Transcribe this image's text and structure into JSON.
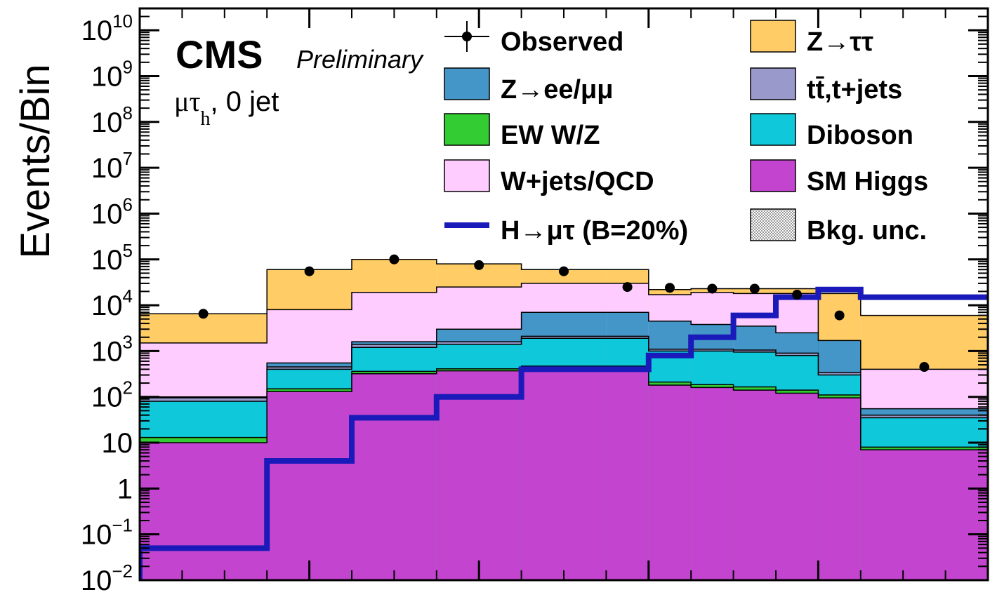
{
  "chart_data": {
    "type": "bar",
    "stacked": true,
    "log_scale": true,
    "ylabel": "Events/Bin",
    "ylim": [
      0.01,
      30000000000
    ],
    "yticks": [
      {
        "value": 10000000000.0,
        "base": "10",
        "exp": "10"
      },
      {
        "value": 1000000000.0,
        "base": "10",
        "exp": "9"
      },
      {
        "value": 100000000.0,
        "base": "10",
        "exp": "8"
      },
      {
        "value": 10000000.0,
        "base": "10",
        "exp": "7"
      },
      {
        "value": 1000000.0,
        "base": "10",
        "exp": "6"
      },
      {
        "value": 100000.0,
        "base": "10",
        "exp": "5"
      },
      {
        "value": 10000.0,
        "base": "10",
        "exp": "4"
      },
      {
        "value": 1000.0,
        "base": "10",
        "exp": "3"
      },
      {
        "value": 100,
        "base": "10",
        "exp": "2"
      },
      {
        "value": 10,
        "base": "10",
        "exp": ""
      },
      {
        "value": 1,
        "base": "1",
        "exp": ""
      },
      {
        "value": 0.1,
        "base": "10",
        "exp": "−1"
      },
      {
        "value": 0.01,
        "base": "10",
        "exp": "−2"
      }
    ],
    "bin_edges": [
      0,
      1.5,
      2.5,
      3.5,
      4.5,
      5.5,
      6,
      6.5,
      7,
      7.5,
      8,
      8.5,
      10
    ],
    "series": [
      {
        "name": "SM Higgs",
        "color": "#c344cf",
        "values": [
          10,
          130,
          320,
          370,
          420,
          420,
          180,
          160,
          140,
          120,
          95,
          7,
          7
        ]
      },
      {
        "name": "EW W/Z",
        "color": "#33cc33",
        "values": [
          13,
          150,
          360,
          410,
          470,
          470,
          210,
          185,
          165,
          140,
          110,
          8,
          8
        ]
      },
      {
        "name": "Diboson",
        "color": "#0fc8da",
        "values": [
          80,
          400,
          1200,
          1400,
          1900,
          1900,
          1000,
          1000,
          950,
          800,
          300,
          35,
          35
        ]
      },
      {
        "name": "tt̄,t+jets",
        "color": "#9999cc",
        "values": [
          95,
          450,
          1400,
          1600,
          2100,
          2100,
          1100,
          1100,
          1050,
          900,
          340,
          40,
          40
        ]
      },
      {
        "name": "Z→ee/μμ",
        "color": "#4496c8",
        "values": [
          100,
          550,
          1600,
          3000,
          7000,
          7000,
          4500,
          3800,
          3500,
          2500,
          1700,
          55,
          55
        ]
      },
      {
        "name": "W+jets/QCD",
        "color": "#ffccff",
        "values": [
          1500,
          8000,
          19000,
          25000,
          30000,
          30000,
          17000,
          19000,
          18000,
          18000,
          500,
          400,
          400
        ]
      },
      {
        "name": "Z→ττ",
        "color": "#ffcc66",
        "values": [
          6500,
          60000,
          100000,
          80000,
          60000,
          60000,
          22000,
          23000,
          23000,
          23000,
          18000,
          6000,
          500
        ]
      }
    ],
    "signal": {
      "name": "H→μτ (B=20%)",
      "color": "#1a1aba",
      "values": [
        0.05,
        4,
        35,
        100,
        400,
        400,
        800,
        2000,
        6000,
        15000,
        22000,
        15000,
        2500
      ]
    },
    "observed": {
      "name": "Observed",
      "x": [
        0.75,
        2,
        3,
        4,
        5,
        5.75,
        6.25,
        6.75,
        7.25,
        7.75,
        8.25,
        9.25
      ],
      "y": [
        6500,
        55000,
        100000,
        75000,
        55000,
        25000,
        24000,
        23000,
        23000,
        17000,
        6000,
        450
      ]
    },
    "bkg_unc_label": "Bkg. unc."
  },
  "annotations": {
    "experiment": "CMS",
    "status": "Preliminary",
    "channel_mu": "μτ",
    "channel_sub": "h",
    "channel_rest": ", 0 jet"
  },
  "legend": {
    "left": [
      {
        "label": "Observed",
        "kind": "marker"
      },
      {
        "label": "Z→ee/μμ",
        "kind": "box",
        "color": "#4496c8"
      },
      {
        "label": "EW W/Z",
        "kind": "box",
        "color": "#33cc33"
      },
      {
        "label": "W+jets/QCD",
        "kind": "box",
        "color": "#ffccff"
      },
      {
        "label": "H→μτ (B=20%)",
        "kind": "line",
        "color": "#1a1aba"
      }
    ],
    "right": [
      {
        "label": "Z→ττ",
        "kind": "box",
        "color": "#ffcc66"
      },
      {
        "label": "tt̄,t+jets",
        "kind": "box",
        "color": "#9999cc"
      },
      {
        "label": "Diboson",
        "kind": "box",
        "color": "#0fc8da"
      },
      {
        "label": "SM Higgs",
        "kind": "box",
        "color": "#c344cf"
      },
      {
        "label": "Bkg. unc.",
        "kind": "hatch",
        "color": "#bbbbbb"
      }
    ]
  }
}
